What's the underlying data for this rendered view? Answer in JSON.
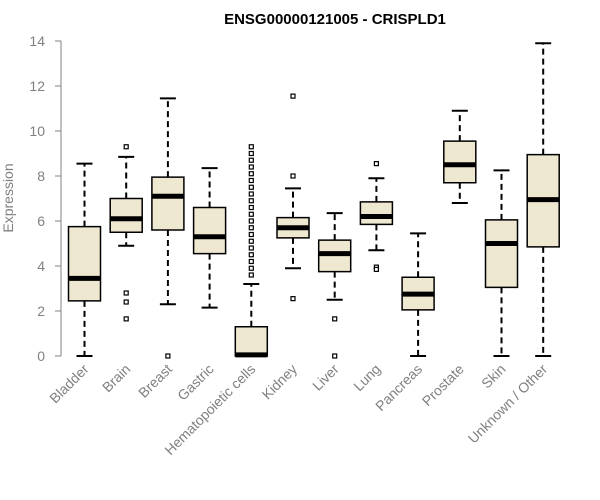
{
  "chart_data": {
    "type": "boxplot",
    "title": "ENSG00000121005 - CRISPLD1",
    "xlabel": "",
    "ylabel": "Expression",
    "ylim": [
      0,
      14
    ],
    "yticks": [
      0,
      2,
      4,
      6,
      8,
      10,
      12,
      14
    ],
    "grid": false,
    "box_fill": "#efe8d0",
    "box_stroke": "#000000",
    "median_color": "#000000",
    "axis_color": "#808080",
    "categories": [
      "Bladder",
      "Brain",
      "Breast",
      "Gastric",
      "Hematopoietic cells",
      "Kidney",
      "Liver",
      "Lung",
      "Pancreas",
      "Prostate",
      "Skin",
      "Unknown / Other"
    ],
    "boxes": [
      {
        "category": "Bladder",
        "min": 0.0,
        "q1": 2.45,
        "median": 3.45,
        "q3": 5.75,
        "max": 8.55,
        "outliers": []
      },
      {
        "category": "Brain",
        "min": 4.9,
        "q1": 5.5,
        "median": 6.1,
        "q3": 7.0,
        "max": 8.85,
        "outliers": [
          9.3,
          2.8,
          2.4,
          1.65
        ]
      },
      {
        "category": "Breast",
        "min": 2.3,
        "q1": 5.6,
        "median": 7.1,
        "q3": 7.95,
        "max": 11.45,
        "outliers": [
          0.0
        ]
      },
      {
        "category": "Gastric",
        "min": 2.15,
        "q1": 4.55,
        "median": 5.3,
        "q3": 6.6,
        "max": 8.35,
        "outliers": []
      },
      {
        "category": "Hematopoietic cells",
        "min": 0.0,
        "q1": 0.0,
        "median": 0.05,
        "q3": 1.3,
        "max": 3.2,
        "outliers": [
          9.3,
          9.0,
          8.7,
          8.4,
          8.1,
          7.8,
          7.5,
          7.2,
          6.9,
          6.6,
          6.3,
          6.0,
          5.7,
          5.4,
          5.1,
          4.8,
          4.5,
          4.2,
          3.9,
          3.6
        ]
      },
      {
        "category": "Kidney",
        "min": 3.9,
        "q1": 5.25,
        "median": 5.7,
        "q3": 6.15,
        "max": 7.45,
        "outliers": [
          11.55,
          8.0,
          2.55
        ]
      },
      {
        "category": "Liver",
        "min": 2.5,
        "q1": 3.75,
        "median": 4.55,
        "q3": 5.15,
        "max": 6.35,
        "outliers": [
          1.65,
          0.0
        ]
      },
      {
        "category": "Lung",
        "min": 4.7,
        "q1": 5.85,
        "median": 6.2,
        "q3": 6.85,
        "max": 7.9,
        "outliers": [
          8.55,
          3.95,
          3.85
        ]
      },
      {
        "category": "Pancreas",
        "min": 0.0,
        "q1": 2.05,
        "median": 2.75,
        "q3": 3.5,
        "max": 5.45,
        "outliers": []
      },
      {
        "category": "Prostate",
        "min": 6.8,
        "q1": 7.7,
        "median": 8.5,
        "q3": 9.55,
        "max": 10.9,
        "outliers": []
      },
      {
        "category": "Skin",
        "min": 0.0,
        "q1": 3.05,
        "median": 5.0,
        "q3": 6.05,
        "max": 8.25,
        "outliers": []
      },
      {
        "category": "Unknown / Other",
        "min": 0.0,
        "q1": 4.85,
        "median": 6.95,
        "q3": 8.95,
        "max": 13.9,
        "outliers": []
      }
    ]
  }
}
